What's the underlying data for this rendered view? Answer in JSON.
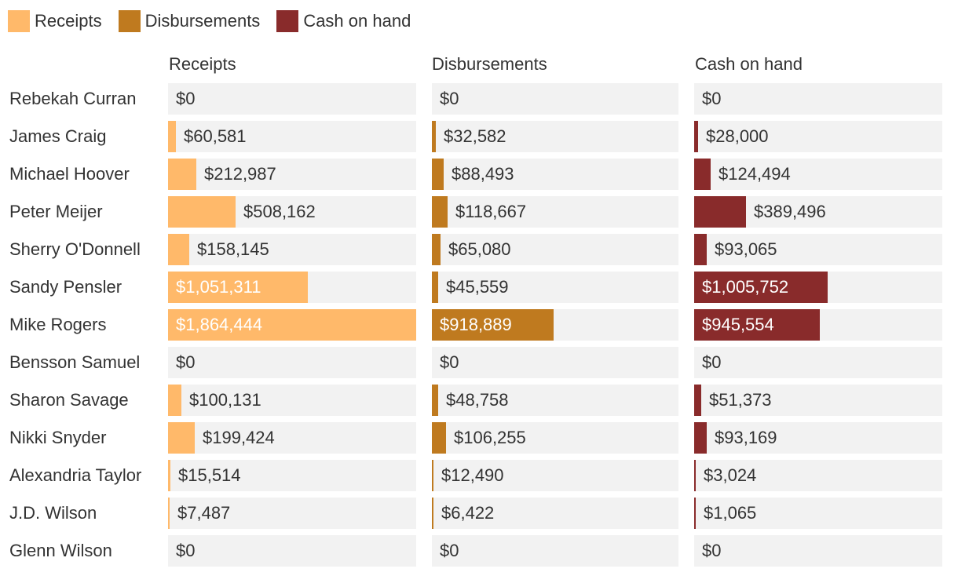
{
  "legend": [
    {
      "label": "Receipts",
      "color": "#ffb96a"
    },
    {
      "label": "Disbursements",
      "color": "#bf7a1f"
    },
    {
      "label": "Cash on hand",
      "color": "#892b2b"
    }
  ],
  "chart_data": {
    "type": "bar",
    "orientation": "horizontal",
    "layout": "small-multiples",
    "categories": [
      "Rebekah Curran",
      "James Craig",
      "Michael Hoover",
      "Peter Meijer",
      "Sherry O'Donnell",
      "Sandy Pensler",
      "Mike Rogers",
      "Bensson Samuel",
      "Sharon Savage",
      "Nikki Snyder",
      "Alexandria Taylor",
      "J.D. Wilson",
      "Glenn Wilson"
    ],
    "series": [
      {
        "name": "Receipts",
        "color": "#ffb96a",
        "values": [
          0,
          60581,
          212987,
          508162,
          158145,
          1051311,
          1864444,
          0,
          100131,
          199424,
          15514,
          7487,
          0
        ],
        "labels": [
          "$0",
          "$60,581",
          "$212,987",
          "$508,162",
          "$158,145",
          "$1,051,311",
          "$1,864,444",
          "$0",
          "$100,131",
          "$199,424",
          "$15,514",
          "$7,487",
          "$0"
        ]
      },
      {
        "name": "Disbursements",
        "color": "#bf7a1f",
        "values": [
          0,
          32582,
          88493,
          118667,
          65080,
          45559,
          918889,
          0,
          48758,
          106255,
          12490,
          6422,
          0
        ],
        "labels": [
          "$0",
          "$32,582",
          "$88,493",
          "$118,667",
          "$65,080",
          "$45,559",
          "$918,889",
          "$0",
          "$48,758",
          "$106,255",
          "$12,490",
          "$6,422",
          "$0"
        ]
      },
      {
        "name": "Cash on hand",
        "color": "#892b2b",
        "values": [
          0,
          28000,
          124494,
          389496,
          93065,
          1005752,
          945554,
          0,
          51373,
          93169,
          3024,
          1065,
          0
        ],
        "labels": [
          "$0",
          "$28,000",
          "$124,494",
          "$389,496",
          "$93,065",
          "$1,005,752",
          "$945,554",
          "$0",
          "$51,373",
          "$93,169",
          "$3,024",
          "$1,065",
          "$0"
        ]
      }
    ],
    "xlim": [
      0,
      1864444
    ],
    "grid": false,
    "legend_position": "top-left"
  }
}
